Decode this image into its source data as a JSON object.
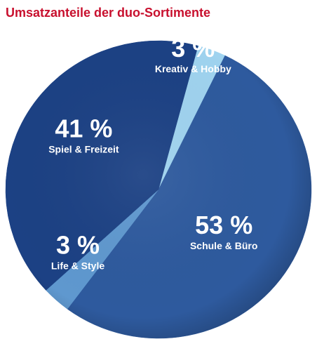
{
  "chart_data": {
    "type": "pie",
    "title": "Umsatzanteile der duo-Sortimente",
    "unit": "%",
    "slices": [
      {
        "label": "Kreativ & Hobby",
        "value": 3,
        "value_label": "3 %",
        "color": "#9fd3ef"
      },
      {
        "label": "Schule & Büro",
        "value": 53,
        "value_label": "53 %",
        "color": "#2e5a9e"
      },
      {
        "label": "Life & Style",
        "value": 3,
        "value_label": "3 %",
        "color": "#5f98cf"
      },
      {
        "label": "Spiel & Freizeit",
        "value": 41,
        "value_label": "41 %",
        "color": "#1c4184"
      }
    ]
  }
}
